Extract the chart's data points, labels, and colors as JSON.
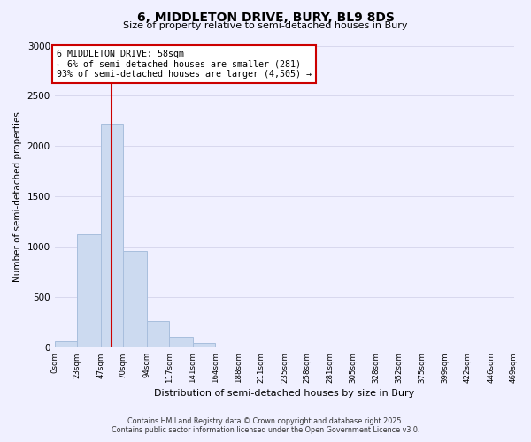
{
  "title": "6, MIDDLETON DRIVE, BURY, BL9 8DS",
  "subtitle": "Size of property relative to semi-detached houses in Bury",
  "xlabel": "Distribution of semi-detached houses by size in Bury",
  "ylabel": "Number of semi-detached properties",
  "bar_edges": [
    0,
    23,
    47,
    70,
    94,
    117,
    141,
    164,
    188,
    211,
    235,
    258,
    281,
    305,
    328,
    352,
    375,
    399,
    422,
    446,
    469
  ],
  "bar_heights": [
    60,
    1130,
    2220,
    960,
    265,
    105,
    45,
    5,
    2,
    1,
    0,
    0,
    0,
    0,
    0,
    0,
    0,
    0,
    0,
    0
  ],
  "bar_color": "#ccdaf0",
  "bar_edge_color": "#a8bedd",
  "vline_x": 58,
  "vline_color": "#cc0000",
  "annotation_box_text": "6 MIDDLETON DRIVE: 58sqm\n← 6% of semi-detached houses are smaller (281)\n93% of semi-detached houses are larger (4,505) →",
  "ylim": [
    0,
    3000
  ],
  "yticks": [
    0,
    500,
    1000,
    1500,
    2000,
    2500,
    3000
  ],
  "tick_labels": [
    "0sqm",
    "23sqm",
    "47sqm",
    "70sqm",
    "94sqm",
    "117sqm",
    "141sqm",
    "164sqm",
    "188sqm",
    "211sqm",
    "235sqm",
    "258sqm",
    "281sqm",
    "305sqm",
    "328sqm",
    "352sqm",
    "375sqm",
    "399sqm",
    "422sqm",
    "446sqm",
    "469sqm"
  ],
  "footer_line1": "Contains HM Land Registry data © Crown copyright and database right 2025.",
  "footer_line2": "Contains public sector information licensed under the Open Government Licence v3.0.",
  "bg_color": "#f0f0ff",
  "grid_color": "#d8d8ee"
}
